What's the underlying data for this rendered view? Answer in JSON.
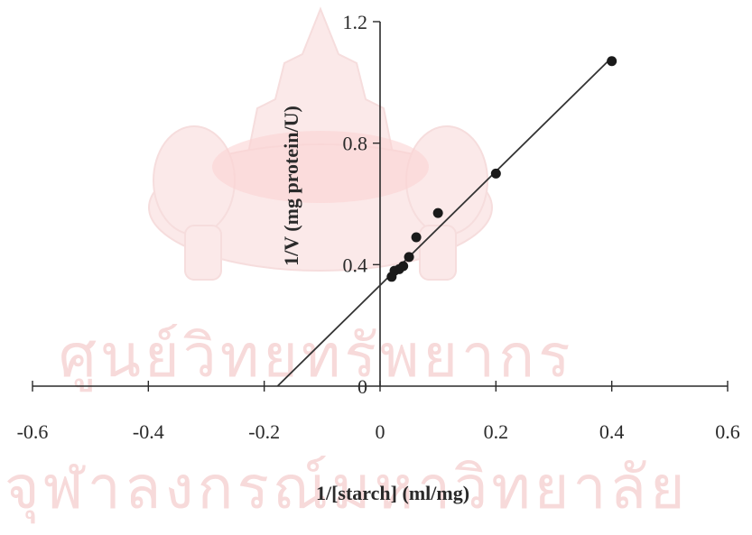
{
  "watermark": {
    "line1": "ศูนย์วิทยทรัพยากร",
    "line2": "จุฬาลงกรณ์มหาวิทยาลัย",
    "color": "#f7dada"
  },
  "chart_data": {
    "type": "scatter",
    "title": "",
    "xlabel": "1/[starch] (ml/mg)",
    "ylabel": "1/V (mg protein/U)",
    "xlim": [
      -0.6,
      0.6
    ],
    "ylim": [
      0,
      1.2
    ],
    "xticks": [
      -0.6,
      -0.4,
      -0.2,
      0,
      0.2,
      0.4,
      0.6
    ],
    "xtick_labels": [
      "-0.6",
      "-0.4",
      "-0.2",
      "0",
      "0.2",
      "0.4",
      "0.6"
    ],
    "yticks": [
      0.4,
      0.8,
      1.2
    ],
    "ytick_labels": [
      "0.4",
      "0.8",
      "1.2"
    ],
    "y_origin_label": "0",
    "grid": false,
    "legend": "none",
    "series": [
      {
        "marker": "circle",
        "color": "#1a1a1a",
        "x": [
          0.02,
          0.025,
          0.033,
          0.04,
          0.05,
          0.0625,
          0.1,
          0.2,
          0.4
        ],
        "y": [
          0.36,
          0.38,
          0.385,
          0.395,
          0.425,
          0.49,
          0.57,
          0.7,
          1.07
        ]
      }
    ],
    "trendline": {
      "type": "linear",
      "slope": 1.875,
      "intercept": 0.332,
      "x_range": [
        -0.177,
        0.4
      ],
      "color": "#333333"
    }
  }
}
